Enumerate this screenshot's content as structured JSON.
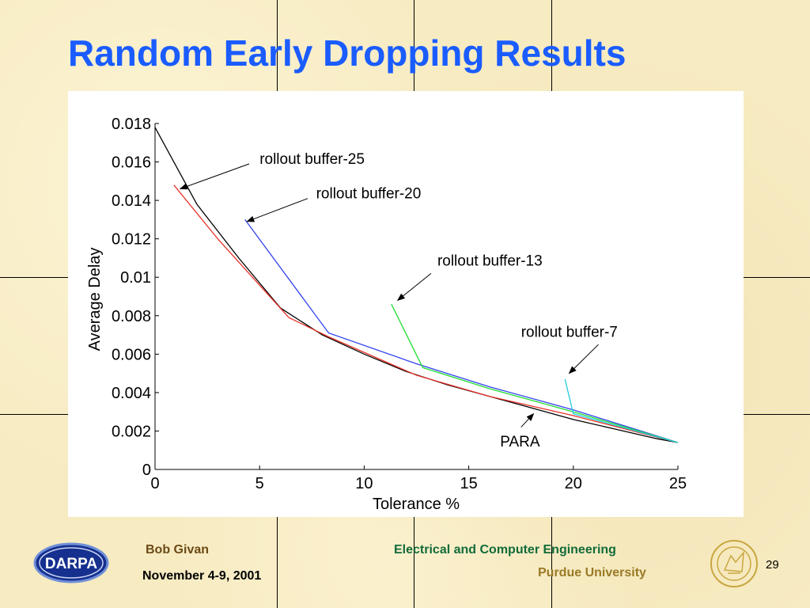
{
  "slide": {
    "title": "Random Early Dropping Results",
    "number": "29"
  },
  "footer": {
    "author": "Bob Givan",
    "date": "November 4-9, 2001",
    "department": "Electrical and Computer Engineering",
    "university": "Purdue University"
  },
  "logos": {
    "left": "DARPA",
    "right_icon": "purdue-university-seal-icon"
  },
  "colors": {
    "title": "#1a5cff",
    "author": "#6b4a16",
    "department": "#126b3a",
    "university": "#9a7a26"
  },
  "chart_data": {
    "type": "line",
    "title": "",
    "xlabel": "Tolerance %",
    "ylabel": "Average Delay",
    "xlim": [
      0,
      25
    ],
    "ylim": [
      0,
      0.018
    ],
    "xticks": [
      0,
      5,
      10,
      15,
      20,
      25
    ],
    "yticks": [
      0,
      0.002,
      0.004,
      0.006,
      0.008,
      0.01,
      0.012,
      0.014,
      0.016,
      0.018
    ],
    "grid": false,
    "series": [
      {
        "name": "PARA",
        "color": "#000000",
        "x": [
          0,
          2,
          4,
          6,
          8,
          10,
          12,
          14,
          16,
          18,
          20,
          22,
          24,
          25
        ],
        "y": [
          0.0178,
          0.0138,
          0.011,
          0.0084,
          0.007,
          0.006,
          0.0051,
          0.0044,
          0.0038,
          0.0032,
          0.0026,
          0.0021,
          0.0016,
          0.0014
        ]
      },
      {
        "name": "rollout buffer-25",
        "color": "#e8332a",
        "x": [
          0.9,
          3,
          6.4,
          8.3,
          12.5,
          16,
          20,
          25
        ],
        "y": [
          0.0148,
          0.012,
          0.0079,
          0.0069,
          0.0049,
          0.0038,
          0.0028,
          0.0014
        ]
      },
      {
        "name": "rollout buffer-20",
        "color": "#3344ee",
        "x": [
          4.3,
          8.3,
          12.5,
          16,
          20,
          25
        ],
        "y": [
          0.013,
          0.0071,
          0.0055,
          0.0043,
          0.0031,
          0.0014
        ]
      },
      {
        "name": "rollout buffer-13",
        "color": "#22dd33",
        "x": [
          11.3,
          12.8,
          16,
          20,
          25
        ],
        "y": [
          0.0086,
          0.0053,
          0.0042,
          0.003,
          0.0014
        ]
      },
      {
        "name": "rollout buffer-7",
        "color": "#22ccdd",
        "x": [
          19.6,
          20,
          22,
          25
        ],
        "y": [
          0.0047,
          0.0029,
          0.0023,
          0.0014
        ]
      }
    ],
    "annotations": [
      {
        "text": "rollout buffer-25",
        "arrow_to": [
          1.2,
          0.0146
        ],
        "arrow_from_label": [
          4.5,
          0.0159
        ],
        "label_at": [
          5,
          0.0159
        ]
      },
      {
        "text": "rollout buffer-20",
        "arrow_to": [
          4.4,
          0.0129
        ],
        "arrow_from_label": [
          7.3,
          0.0141
        ],
        "label_at": [
          7.7,
          0.0141
        ]
      },
      {
        "text": "rollout buffer-13",
        "arrow_to": [
          11.6,
          0.0088
        ],
        "arrow_from_label": [
          13.2,
          0.0102
        ],
        "label_at": [
          13.5,
          0.0106
        ]
      },
      {
        "text": "rollout buffer-7",
        "arrow_to": [
          19.8,
          0.005
        ],
        "arrow_from_label": [
          21.2,
          0.0065
        ],
        "label_at": [
          17.5,
          0.0069
        ]
      },
      {
        "text": "PARA",
        "arrow_to": [
          18.1,
          0.0029
        ],
        "arrow_from_label": [
          17.5,
          0.0022
        ],
        "label_at": [
          16.5,
          0.0012
        ]
      }
    ]
  }
}
